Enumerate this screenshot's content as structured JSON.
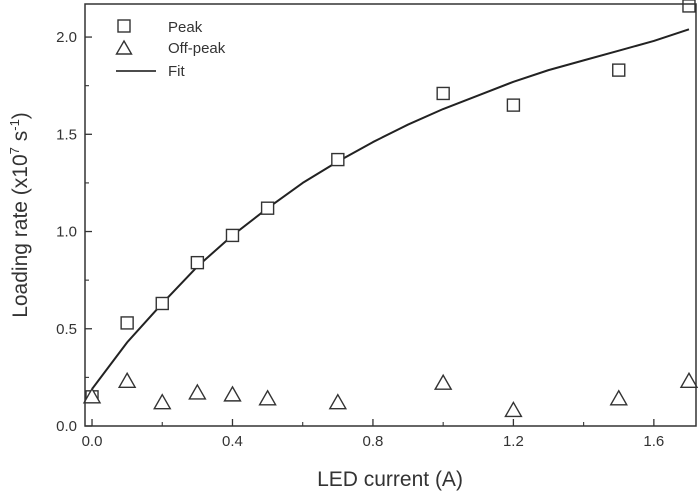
{
  "chart_data": {
    "type": "scatter",
    "xlabel": "LED current (A)",
    "ylabel": {
      "prefix": "Loading rate (x10",
      "exp1": "7",
      "mid": " s",
      "exp2": "-1",
      "suffix": ")"
    },
    "xlim": [
      -0.02,
      1.72
    ],
    "ylim": [
      0.0,
      2.17
    ],
    "xticks": [
      0.0,
      0.4,
      0.8,
      1.2,
      1.6
    ],
    "xtick_labels": [
      "0.0",
      "0.4",
      "0.8",
      "1.2",
      "1.6"
    ],
    "yticks": [
      0.0,
      0.5,
      1.0,
      1.5,
      2.0
    ],
    "ytick_labels": [
      "0.0",
      "0.5",
      "1.0",
      "1.5",
      "2.0"
    ],
    "grid": false,
    "legend_position": "top-left",
    "legend": [
      "Peak",
      "Off-peak",
      "Fit"
    ],
    "series": [
      {
        "name": "Peak",
        "marker": "square",
        "x": [
          0.0,
          0.1,
          0.2,
          0.3,
          0.4,
          0.5,
          0.7,
          1.0,
          1.2,
          1.5,
          1.7
        ],
        "y": [
          0.15,
          0.53,
          0.63,
          0.84,
          0.98,
          1.12,
          1.37,
          1.71,
          1.65,
          1.83,
          2.16
        ]
      },
      {
        "name": "Off-peak",
        "marker": "triangle",
        "x": [
          0.0,
          0.1,
          0.2,
          0.3,
          0.4,
          0.5,
          0.7,
          1.0,
          1.2,
          1.5,
          1.7
        ],
        "y": [
          0.15,
          0.23,
          0.12,
          0.17,
          0.16,
          0.14,
          0.12,
          0.22,
          0.08,
          0.14,
          0.23
        ]
      },
      {
        "name": "Fit",
        "marker": "line",
        "x": [
          0.0,
          0.1,
          0.2,
          0.3,
          0.4,
          0.5,
          0.6,
          0.7,
          0.8,
          0.9,
          1.0,
          1.1,
          1.2,
          1.3,
          1.4,
          1.5,
          1.6,
          1.7
        ],
        "y": [
          0.19,
          0.43,
          0.63,
          0.82,
          0.98,
          1.12,
          1.25,
          1.36,
          1.46,
          1.55,
          1.63,
          1.7,
          1.77,
          1.83,
          1.88,
          1.93,
          1.98,
          2.04
        ]
      }
    ]
  }
}
